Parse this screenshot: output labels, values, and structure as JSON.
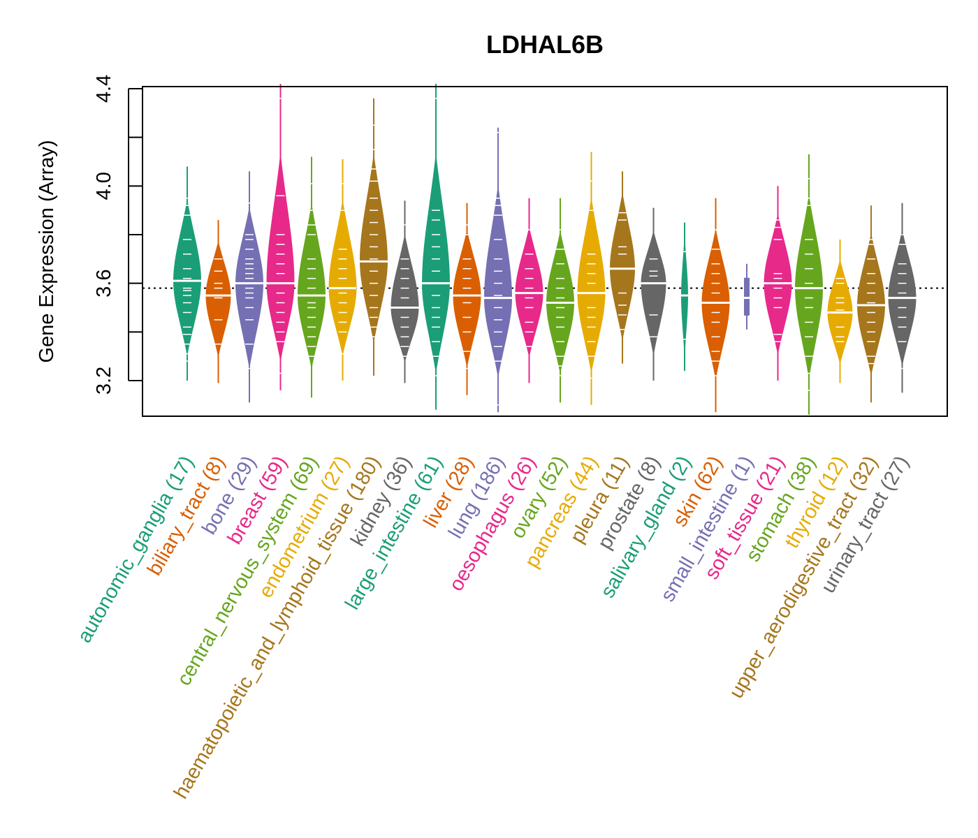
{
  "chart_data": {
    "type": "violin",
    "title": "LDHAL6B",
    "xlabel": "",
    "ylabel": "Gene Expression (Array)",
    "ylim": [
      3.05,
      4.41
    ],
    "yticks": [
      3.2,
      3.4,
      3.6,
      3.8,
      4.0,
      4.2,
      4.4
    ],
    "ytick_labels": [
      "3.2",
      "",
      "3.6",
      "",
      "4.0",
      "",
      "4.4"
    ],
    "reference_line": 3.58,
    "grid": false,
    "legend": "none",
    "categories": [
      {
        "name": "autonomic_ganglia",
        "n": 17,
        "label": "autonomic_ganglia (17)",
        "color": "#1B9E77",
        "median": 3.61,
        "min": 3.2,
        "max": 4.08,
        "q1": 3.45,
        "q3": 3.75,
        "points": [
          3.28,
          3.31,
          3.35,
          3.39,
          3.42,
          3.48,
          3.52,
          3.55,
          3.57,
          3.58,
          3.62,
          3.66,
          3.72,
          3.78,
          3.88,
          3.92,
          3.95
        ]
      },
      {
        "name": "biliary_tract",
        "n": 8,
        "label": "biliary_tract (8)",
        "color": "#D95F02",
        "median": 3.55,
        "min": 3.19,
        "max": 3.86,
        "q1": 3.45,
        "q3": 3.65,
        "points": [
          3.35,
          3.45,
          3.54,
          3.58,
          3.6,
          3.65,
          3.7
        ]
      },
      {
        "name": "bone",
        "n": 29,
        "label": "bone (29)",
        "color": "#7570B3",
        "median": 3.6,
        "min": 3.11,
        "max": 4.06,
        "q1": 3.45,
        "q3": 3.7,
        "points": [
          3.25,
          3.35,
          3.45,
          3.5,
          3.54,
          3.56,
          3.58,
          3.62,
          3.64,
          3.66,
          3.68,
          3.7,
          3.74,
          3.78,
          3.8,
          3.93
        ]
      },
      {
        "name": "breast",
        "n": 59,
        "label": "breast (59)",
        "color": "#E7298A",
        "median": 3.6,
        "min": 3.16,
        "max": 4.42,
        "q1": 3.45,
        "q3": 3.72,
        "points": [
          3.23,
          3.36,
          3.4,
          3.44,
          3.48,
          3.52,
          3.56,
          3.6,
          3.64,
          3.68,
          3.72,
          3.76,
          3.8,
          3.96,
          4.36
        ]
      },
      {
        "name": "central_nervous_system",
        "n": 69,
        "label": "central_nervous_system (69)",
        "color": "#66A61E",
        "median": 3.55,
        "min": 3.13,
        "max": 4.12,
        "q1": 3.42,
        "q3": 3.65,
        "points": [
          3.3,
          3.34,
          3.38,
          3.42,
          3.46,
          3.5,
          3.52,
          3.58,
          3.62,
          3.66,
          3.7,
          3.8,
          3.84,
          3.9,
          4.01
        ]
      },
      {
        "name": "endometrium",
        "n": 27,
        "label": "endometrium (27)",
        "color": "#E6AB02",
        "median": 3.58,
        "min": 3.2,
        "max": 4.11,
        "q1": 3.45,
        "q3": 3.7,
        "points": [
          3.31,
          3.4,
          3.44,
          3.48,
          3.52,
          3.56,
          3.62,
          3.66,
          3.7,
          3.74,
          3.9,
          4.01
        ]
      },
      {
        "name": "haematopoietic_and_lymphoid_tissue",
        "n": 180,
        "label": "haematopoietic_and_lymphoid_tissue (180)",
        "color": "#A6761D",
        "median": 3.69,
        "min": 3.22,
        "max": 4.36,
        "q1": 3.55,
        "q3": 3.8,
        "points": [
          3.38,
          3.42,
          3.46,
          3.5,
          3.55,
          3.6,
          3.65,
          3.7,
          3.75,
          3.8,
          3.85,
          3.9,
          3.95,
          4.02,
          4.07,
          4.15,
          4.25
        ]
      },
      {
        "name": "kidney",
        "n": 36,
        "label": "kidney (36)",
        "color": "#666666",
        "median": 3.5,
        "min": 3.19,
        "max": 3.94,
        "q1": 3.4,
        "q3": 3.6,
        "points": [
          3.3,
          3.34,
          3.38,
          3.42,
          3.46,
          3.5,
          3.54,
          3.58,
          3.62,
          3.66,
          3.7,
          3.84
        ]
      },
      {
        "name": "large_intestine",
        "n": 61,
        "label": "large_intestine (61)",
        "color": "#1B9E77",
        "median": 3.6,
        "min": 3.08,
        "max": 4.42,
        "q1": 3.45,
        "q3": 3.72,
        "points": [
          3.22,
          3.3,
          3.36,
          3.42,
          3.46,
          3.5,
          3.55,
          3.6,
          3.65,
          3.7,
          3.75,
          3.8,
          3.86,
          3.9,
          4.36
        ]
      },
      {
        "name": "liver",
        "n": 28,
        "label": "liver (28)",
        "color": "#D95F02",
        "median": 3.55,
        "min": 3.14,
        "max": 3.93,
        "q1": 3.42,
        "q3": 3.66,
        "points": [
          3.25,
          3.32,
          3.4,
          3.46,
          3.52,
          3.58,
          3.62,
          3.66,
          3.7,
          3.8,
          3.84
        ]
      },
      {
        "name": "lung",
        "n": 186,
        "label": "lung (186)",
        "color": "#7570B3",
        "median": 3.54,
        "min": 3.07,
        "max": 4.24,
        "q1": 3.42,
        "q3": 3.66,
        "points": [
          3.1,
          3.28,
          3.34,
          3.4,
          3.45,
          3.5,
          3.55,
          3.6,
          3.65,
          3.7,
          3.78,
          3.88,
          3.92,
          3.95,
          4.22
        ]
      },
      {
        "name": "oesophagus",
        "n": 26,
        "label": "oesophagus (26)",
        "color": "#E7298A",
        "median": 3.56,
        "min": 3.19,
        "max": 3.95,
        "q1": 3.45,
        "q3": 3.66,
        "points": [
          3.34,
          3.4,
          3.44,
          3.5,
          3.54,
          3.58,
          3.62,
          3.66,
          3.72,
          3.82
        ]
      },
      {
        "name": "ovary",
        "n": 52,
        "label": "ovary (52)",
        "color": "#66A61E",
        "median": 3.52,
        "min": 3.11,
        "max": 3.95,
        "q1": 3.4,
        "q3": 3.62,
        "points": [
          3.22,
          3.26,
          3.3,
          3.36,
          3.42,
          3.46,
          3.5,
          3.54,
          3.58,
          3.62,
          3.68,
          3.74,
          3.82
        ]
      },
      {
        "name": "pancreas",
        "n": 44,
        "label": "pancreas (44)",
        "color": "#E6AB02",
        "median": 3.56,
        "min": 3.1,
        "max": 4.14,
        "q1": 3.42,
        "q3": 3.68,
        "points": [
          3.21,
          3.3,
          3.36,
          3.42,
          3.46,
          3.5,
          3.56,
          3.6,
          3.64,
          3.68,
          3.72,
          3.9,
          4.02
        ]
      },
      {
        "name": "pleura",
        "n": 11,
        "label": "pleura (11)",
        "color": "#A6761D",
        "median": 3.66,
        "min": 3.27,
        "max": 4.06,
        "q1": 3.5,
        "q3": 3.85,
        "points": [
          3.41,
          3.47,
          3.51,
          3.56,
          3.72,
          3.75,
          3.86,
          3.89
        ]
      },
      {
        "name": "prostate",
        "n": 8,
        "label": "prostate (8)",
        "color": "#666666",
        "median": 3.6,
        "min": 3.2,
        "max": 3.91,
        "q1": 3.45,
        "q3": 3.68,
        "points": [
          3.38,
          3.47,
          3.6,
          3.63,
          3.65,
          3.7
        ]
      },
      {
        "name": "salivary_gland",
        "n": 2,
        "label": "salivary_gland (2)",
        "color": "#1B9E77",
        "median": 3.55,
        "min": 3.24,
        "max": 3.85,
        "q1": 3.37,
        "q3": 3.73,
        "points": [
          3.37,
          3.73
        ]
      },
      {
        "name": "skin",
        "n": 62,
        "label": "skin (62)",
        "color": "#D95F02",
        "median": 3.52,
        "min": 3.07,
        "max": 3.95,
        "q1": 3.4,
        "q3": 3.64,
        "points": [
          3.22,
          3.28,
          3.32,
          3.38,
          3.44,
          3.48,
          3.52,
          3.56,
          3.6,
          3.64,
          3.68,
          3.74,
          3.82
        ]
      },
      {
        "name": "small_intestine",
        "n": 1,
        "label": "small_intestine (1)",
        "color": "#7570B3",
        "median": 3.54,
        "min": 3.41,
        "max": 3.68,
        "q1": 3.54,
        "q3": 3.54,
        "points": [
          3.54
        ]
      },
      {
        "name": "soft_tissue",
        "n": 21,
        "label": "soft_tissue (21)",
        "color": "#E7298A",
        "median": 3.6,
        "min": 3.2,
        "max": 4.0,
        "q1": 3.46,
        "q3": 3.72,
        "points": [
          3.36,
          3.39,
          3.5,
          3.54,
          3.58,
          3.62,
          3.64,
          3.78,
          3.83,
          3.86
        ]
      },
      {
        "name": "stomach",
        "n": 38,
        "label": "stomach (38)",
        "color": "#66A61E",
        "median": 3.58,
        "min": 3.06,
        "max": 4.13,
        "q1": 3.42,
        "q3": 3.72,
        "points": [
          3.16,
          3.23,
          3.3,
          3.38,
          3.44,
          3.5,
          3.54,
          3.6,
          3.66,
          3.72,
          3.78,
          3.92,
          3.95,
          4.03
        ]
      },
      {
        "name": "thyroid",
        "n": 12,
        "label": "thyroid (12)",
        "color": "#E6AB02",
        "median": 3.48,
        "min": 3.19,
        "max": 3.78,
        "q1": 3.38,
        "q3": 3.58,
        "points": [
          3.36,
          3.38,
          3.42,
          3.49,
          3.52,
          3.54,
          3.6,
          3.62
        ]
      },
      {
        "name": "upper_aerodigestive_tract",
        "n": 32,
        "label": "upper_aerodigestive_tract (32)",
        "color": "#A6761D",
        "median": 3.51,
        "min": 3.11,
        "max": 3.92,
        "q1": 3.38,
        "q3": 3.64,
        "points": [
          3.27,
          3.3,
          3.36,
          3.4,
          3.44,
          3.48,
          3.52,
          3.56,
          3.6,
          3.64,
          3.7,
          3.76,
          3.78
        ]
      },
      {
        "name": "urinary_tract",
        "n": 27,
        "label": "urinary_tract (27)",
        "color": "#666666",
        "median": 3.54,
        "min": 3.15,
        "max": 3.93,
        "q1": 3.42,
        "q3": 3.66,
        "points": [
          3.25,
          3.36,
          3.42,
          3.46,
          3.5,
          3.56,
          3.6,
          3.64,
          3.68,
          3.76,
          3.8
        ]
      }
    ]
  }
}
